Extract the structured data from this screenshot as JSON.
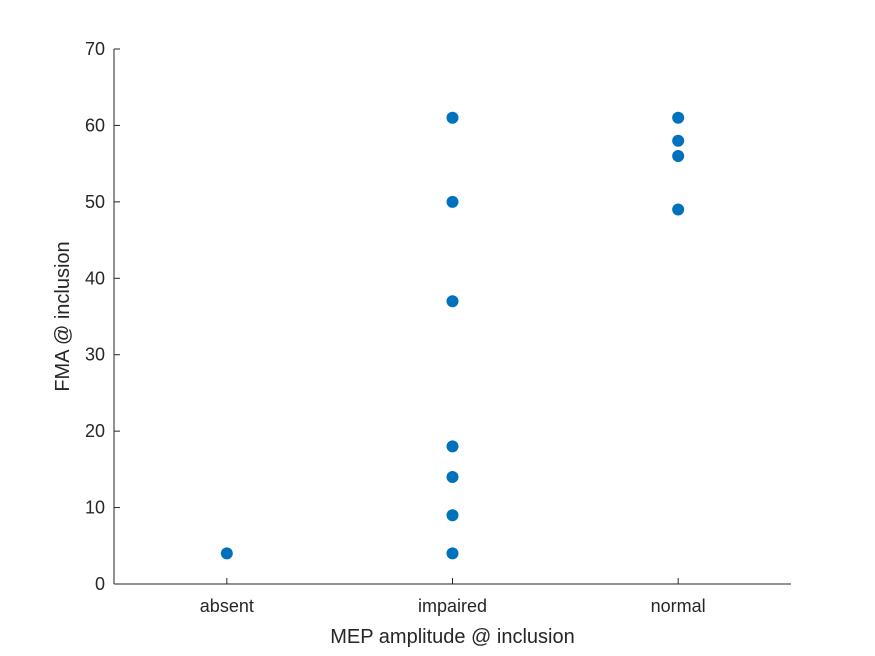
{
  "chart_data": {
    "type": "scatter",
    "xlabel": "MEP amplitude @ inclusion",
    "ylabel": "FMA @ inclusion",
    "categories": [
      "absent",
      "impaired",
      "normal"
    ],
    "ylim": [
      0,
      70
    ],
    "yticks": [
      0,
      10,
      20,
      30,
      40,
      50,
      60,
      70
    ],
    "grid": false,
    "series": [
      {
        "color": "#0072BD",
        "points": [
          {
            "x": "absent",
            "y": 4
          },
          {
            "x": "impaired",
            "y": 61
          },
          {
            "x": "impaired",
            "y": 50
          },
          {
            "x": "impaired",
            "y": 37
          },
          {
            "x": "impaired",
            "y": 18
          },
          {
            "x": "impaired",
            "y": 14
          },
          {
            "x": "impaired",
            "y": 9
          },
          {
            "x": "impaired",
            "y": 4
          },
          {
            "x": "normal",
            "y": 61
          },
          {
            "x": "normal",
            "y": 58
          },
          {
            "x": "normal",
            "y": 56
          },
          {
            "x": "normal",
            "y": 49
          }
        ]
      }
    ]
  }
}
